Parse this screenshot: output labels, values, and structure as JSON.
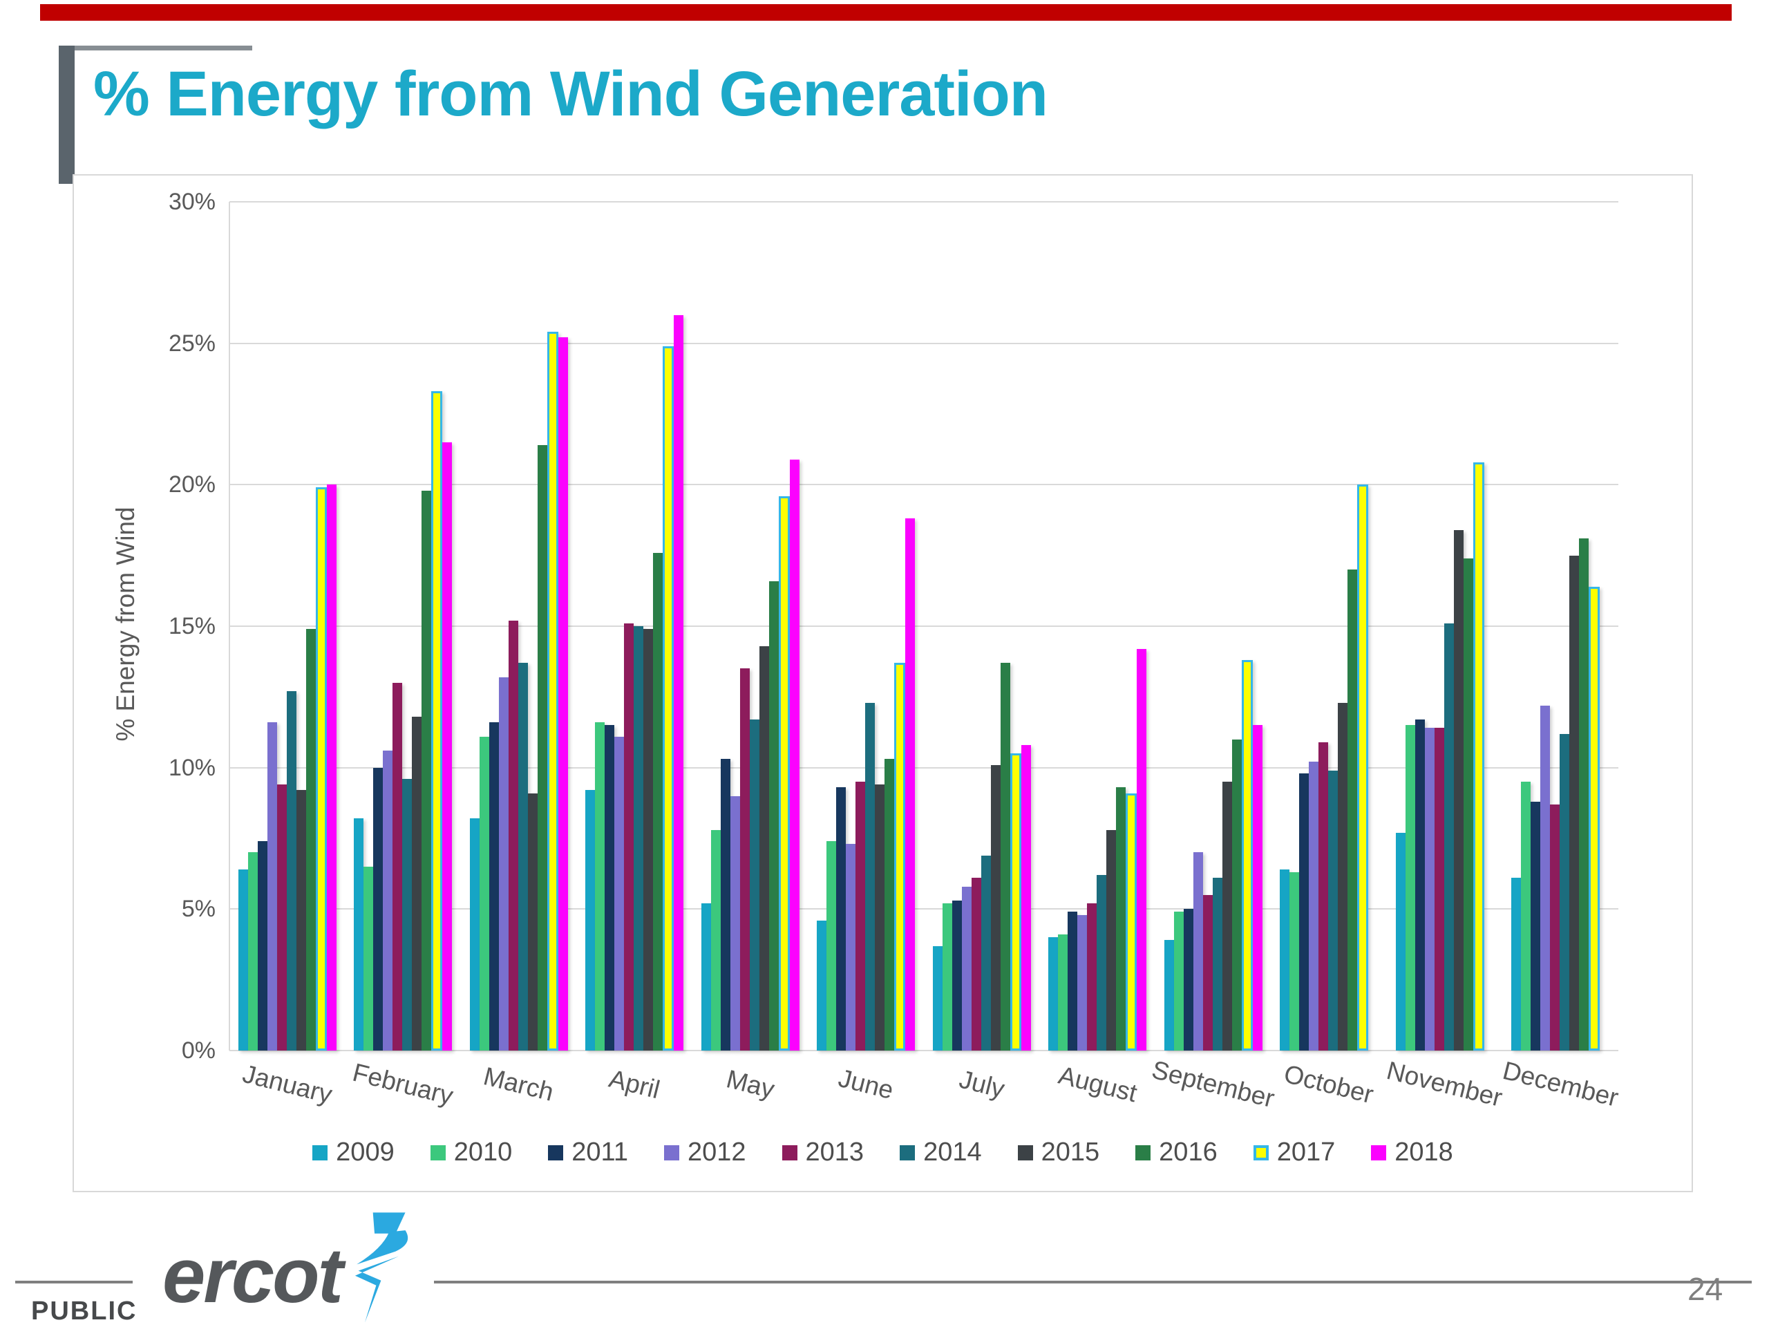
{
  "page": {
    "title": "% Energy from Wind Generation",
    "footer_brand": "ercot",
    "footer_classification": "PUBLIC",
    "page_number": "24"
  },
  "colors": {
    "top_strip": "#c00000",
    "title": "#1ca9c9",
    "brand_bolt": "#2ba9e0",
    "axis_text": "#595959",
    "gridline": "#d9d9d9"
  },
  "chart_data": {
    "type": "bar",
    "title": "",
    "xlabel": "",
    "ylabel": "% Energy from Wind",
    "ylim": [
      0,
      30
    ],
    "grid": true,
    "legend_position": "bottom",
    "yticks": [
      {
        "value": 0,
        "label": "0%"
      },
      {
        "value": 5,
        "label": "5%"
      },
      {
        "value": 10,
        "label": "10%"
      },
      {
        "value": 15,
        "label": "15%"
      },
      {
        "value": 20,
        "label": "20%"
      },
      {
        "value": 25,
        "label": "25%"
      },
      {
        "value": 30,
        "label": "30%"
      }
    ],
    "categories": [
      "January",
      "February",
      "March",
      "April",
      "May",
      "June",
      "July",
      "August",
      "September",
      "October",
      "November",
      "December"
    ],
    "series": [
      {
        "name": "2009",
        "color": "#16a5c5",
        "values": [
          6.4,
          8.2,
          8.2,
          9.2,
          5.2,
          4.6,
          3.7,
          4.0,
          3.9,
          6.4,
          7.7,
          6.1
        ]
      },
      {
        "name": "2010",
        "color": "#3cc87d",
        "values": [
          7.0,
          6.5,
          11.1,
          11.6,
          7.8,
          7.4,
          5.2,
          4.1,
          4.9,
          6.3,
          11.5,
          9.5
        ]
      },
      {
        "name": "2011",
        "color": "#17375e",
        "values": [
          7.4,
          10.0,
          11.6,
          11.5,
          10.3,
          9.3,
          5.3,
          4.9,
          5.0,
          9.8,
          11.7,
          8.8
        ]
      },
      {
        "name": "2012",
        "color": "#7a70cf",
        "values": [
          11.6,
          10.6,
          13.2,
          11.1,
          9.0,
          7.3,
          5.8,
          4.8,
          7.0,
          10.2,
          11.4,
          12.2
        ]
      },
      {
        "name": "2013",
        "color": "#8d1c5c",
        "values": [
          9.4,
          13.0,
          15.2,
          15.1,
          13.5,
          9.5,
          6.1,
          5.2,
          5.5,
          10.9,
          11.4,
          8.7
        ]
      },
      {
        "name": "2014",
        "color": "#1c6d7e",
        "values": [
          12.7,
          9.6,
          13.7,
          15.0,
          11.7,
          12.3,
          6.9,
          6.2,
          6.1,
          9.9,
          15.1,
          11.2
        ]
      },
      {
        "name": "2015",
        "color": "#3c4246",
        "values": [
          9.2,
          11.8,
          9.1,
          14.9,
          14.3,
          9.4,
          10.1,
          7.8,
          9.5,
          12.3,
          18.4,
          17.5
        ]
      },
      {
        "name": "2016",
        "color": "#2a7e47",
        "values": [
          14.9,
          19.8,
          21.4,
          17.6,
          16.6,
          10.3,
          13.7,
          9.3,
          11.0,
          17.0,
          17.4,
          18.1
        ]
      },
      {
        "name": "2017",
        "color": "#fdff00",
        "outline": "#35b7e8",
        "values": [
          19.9,
          23.3,
          25.4,
          24.9,
          19.6,
          13.7,
          10.5,
          9.1,
          13.8,
          20.0,
          20.8,
          16.4
        ]
      },
      {
        "name": "2018",
        "color": "#fb02fe",
        "values": [
          20.0,
          21.5,
          25.2,
          26.0,
          20.9,
          18.8,
          10.8,
          14.2,
          11.5,
          null,
          null,
          null
        ]
      }
    ]
  }
}
